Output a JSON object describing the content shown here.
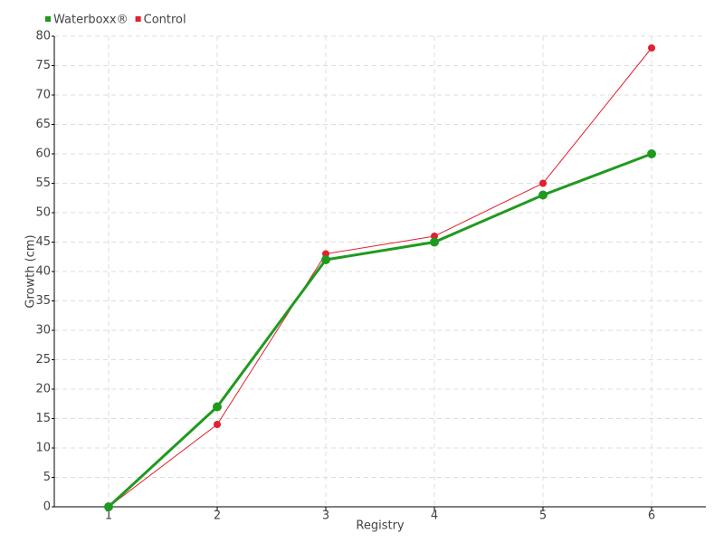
{
  "chart_data": {
    "type": "line",
    "x_label": "Registry",
    "y_label": "Growth (cm)",
    "categories": [
      "1",
      "2",
      "3",
      "4",
      "5",
      "6"
    ],
    "series": [
      {
        "name": "Waterboxx®",
        "color": "#1f9a1f",
        "values": [
          0,
          17,
          42,
          45,
          53,
          60
        ]
      },
      {
        "name": "Control",
        "color": "#e3202f",
        "values": [
          0,
          14,
          43,
          46,
          55,
          78
        ]
      }
    ],
    "ylim": [
      0,
      80
    ],
    "yticks": [
      0,
      5,
      10,
      15,
      20,
      25,
      30,
      35,
      40,
      45,
      50,
      55,
      60,
      65,
      70,
      75,
      80
    ],
    "grid": true,
    "legend": "top-left"
  }
}
